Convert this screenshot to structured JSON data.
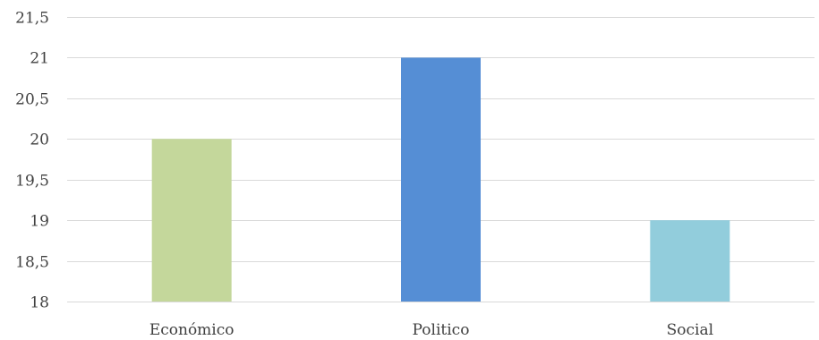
{
  "chart_data": {
    "type": "bar",
    "title": "",
    "xlabel": "",
    "ylabel": "",
    "categories": [
      "Económico",
      "Politico",
      "Social"
    ],
    "values": [
      20,
      21,
      19
    ],
    "colors": [
      "#c4d79b",
      "#558ed5",
      "#92cddc"
    ],
    "ylim": [
      18,
      21.5
    ],
    "yticks": [
      18,
      18.5,
      19,
      19.5,
      20,
      20.5,
      21,
      21.5
    ],
    "ytick_labels": [
      "18",
      "18,5",
      "19",
      "19,5",
      "20",
      "20,5",
      "21",
      "21,5"
    ],
    "grid": true,
    "legend": "none"
  }
}
